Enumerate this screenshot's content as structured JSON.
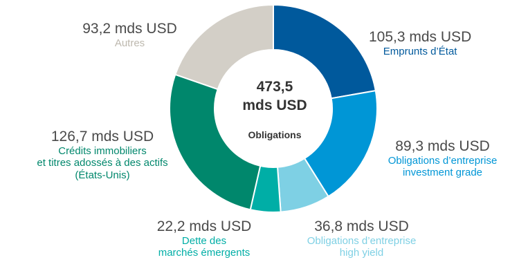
{
  "chart_data": {
    "type": "pie",
    "style": "donut",
    "center": {
      "total": "473,5\nmds USD",
      "label": "Obligations"
    },
    "slices": [
      {
        "value": 105.3,
        "value_label": "105,3 mds USD",
        "category": "Emprunts d’État",
        "color": "#00599c"
      },
      {
        "value": 89.3,
        "value_label": "89,3 mds USD",
        "category": "Obligations d’entreprise\ninvestment grade",
        "color": "#0096d6"
      },
      {
        "value": 36.8,
        "value_label": "36,8 mds USD",
        "category": "Obligations d’entreprise\nhigh yield",
        "color": "#7ed0e4"
      },
      {
        "value": 22.2,
        "value_label": "22,2 mds USD",
        "category": "Dette des\nmarchés émergents",
        "color": "#00aea6"
      },
      {
        "value": 126.7,
        "value_label": "126,7 mds USD",
        "category": "Crédits immobiliers\net titres adossés à des actifs\n(États-Unis)",
        "color": "#00876c"
      },
      {
        "value": 93.2,
        "value_label": "93,2 mds USD",
        "category": "Autres",
        "color": "#d3cfc7"
      }
    ]
  }
}
